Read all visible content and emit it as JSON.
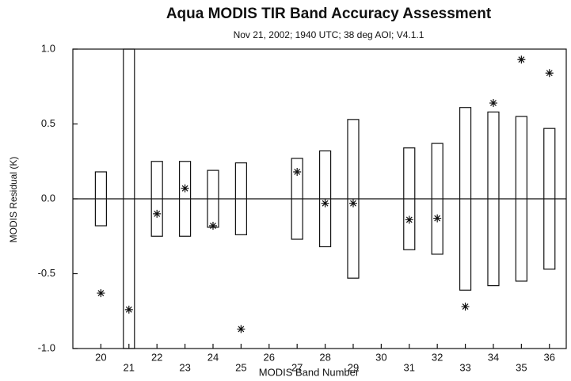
{
  "chart_data": {
    "type": "scatter",
    "title": "Aqua MODIS TIR Band Accuracy Assessment",
    "subtitle": "Nov 21, 2002; 1940 UTC; 38 deg AOI; V4.1.1",
    "x_label": "MODIS Band Number",
    "y_label": "MODIS Residual (K)",
    "x": [
      20,
      21,
      22,
      23,
      24,
      25,
      26,
      27,
      28,
      29,
      30,
      31,
      32,
      33,
      34,
      35,
      36
    ],
    "values": [
      -0.63,
      -0.74,
      -0.1,
      0.07,
      -0.18,
      -0.87,
      null,
      0.18,
      -0.03,
      -0.03,
      null,
      -0.14,
      -0.13,
      -0.72,
      0.64,
      0.93,
      0.84
    ],
    "errors": [
      0.18,
      1.0,
      0.25,
      0.25,
      0.19,
      0.24,
      null,
      0.27,
      0.32,
      0.53,
      null,
      0.34,
      0.37,
      0.61,
      0.58,
      0.55,
      0.47
    ],
    "color": "#111111",
    "xlim": [
      19,
      36.6
    ],
    "ylim": [
      -1.0,
      1.0
    ],
    "xticks": [
      20,
      21,
      22,
      23,
      24,
      25,
      26,
      27,
      28,
      29,
      30,
      31,
      32,
      33,
      34,
      35,
      36
    ],
    "yticks": [
      {
        "value": -1.0,
        "label": "-1.0"
      },
      -0.5,
      {
        "value": 0.0,
        "label": "0.0"
      },
      0.5,
      {
        "value": 1.0,
        "label": "1.0"
      }
    ],
    "reference_line": 0
  }
}
